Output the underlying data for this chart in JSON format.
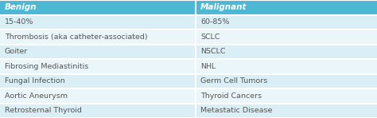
{
  "headers": [
    "Benign",
    "Malignant"
  ],
  "rows": [
    [
      "15-40%",
      "60-85%"
    ],
    [
      "Thrombosis (aka catheter-associated)",
      "SCLC"
    ],
    [
      "Goiter",
      "NSCLC"
    ],
    [
      "Fibrosing Mediastinitis",
      "NHL"
    ],
    [
      "Fungal Infection",
      "Germ Cell Tumors"
    ],
    [
      "Aortic Aneurysm",
      "Thyroid Cancers"
    ],
    [
      "Retrosternal Thyroid",
      "Metastatic Disease"
    ]
  ],
  "header_bg": "#4db8d4",
  "header_text_color": "#ffffff",
  "row_bg_odd": "#daeef5",
  "row_bg_even": "#eaf6fa",
  "row_text_color": "#555555",
  "col_split": 0.52,
  "fig_width": 4.74,
  "fig_height": 1.48,
  "header_fontsize": 7.5,
  "row_fontsize": 6.8,
  "separator_color": "#ffffff",
  "separator_linewidth": 1.5
}
